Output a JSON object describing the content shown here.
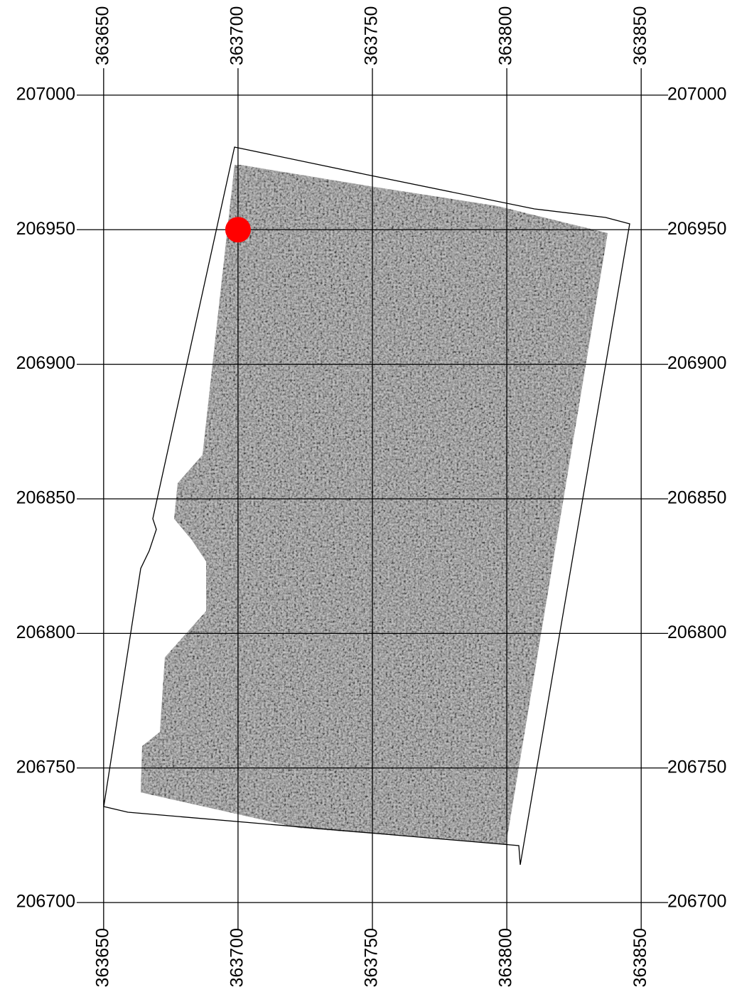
{
  "chart_data": {
    "type": "scatter",
    "xlim": [
      363640,
      363860
    ],
    "ylim": [
      206690,
      207010
    ],
    "xticks": [
      363650,
      363700,
      363750,
      363800,
      363850
    ],
    "yticks": [
      206700,
      206750,
      206800,
      206850,
      206900,
      206950,
      207000
    ],
    "grid": true,
    "series": [
      {
        "color": "#ff0000",
        "x": [
          363700
        ],
        "values": [
          206950
        ]
      }
    ]
  }
}
